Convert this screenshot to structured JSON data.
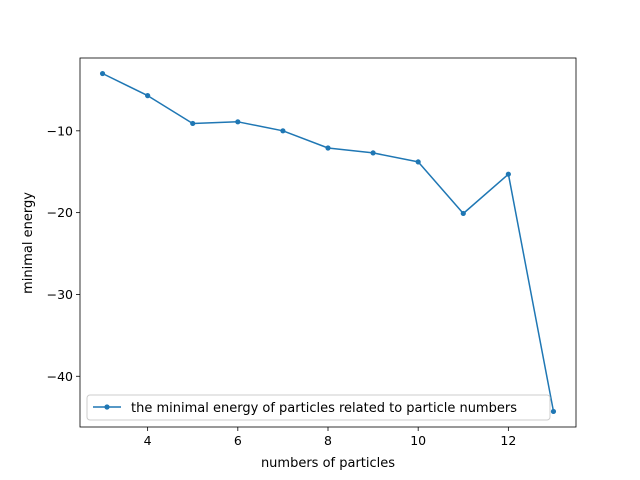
{
  "chart_data": {
    "type": "line",
    "title": "",
    "xlabel": "numbers of particles",
    "ylabel": "minimal energy",
    "xlim": [
      2.5,
      13.5
    ],
    "ylim": [
      -46.2,
      -1.1
    ],
    "xticks": [
      4,
      6,
      8,
      10,
      12
    ],
    "yticks": [
      -10,
      -20,
      -30,
      -40
    ],
    "grid": false,
    "legend_position": "lower left",
    "series": [
      {
        "name": "the minimal energy of particles related to particle numbers",
        "color": "#1f77b4",
        "marker": "point",
        "x": [
          3,
          4,
          5,
          6,
          7,
          8,
          9,
          10,
          11,
          12,
          13
        ],
        "y": [
          -3.0,
          -5.7,
          -9.1,
          -8.9,
          -10.0,
          -12.1,
          -12.7,
          -13.8,
          -20.1,
          -15.3,
          -44.3
        ]
      }
    ]
  }
}
